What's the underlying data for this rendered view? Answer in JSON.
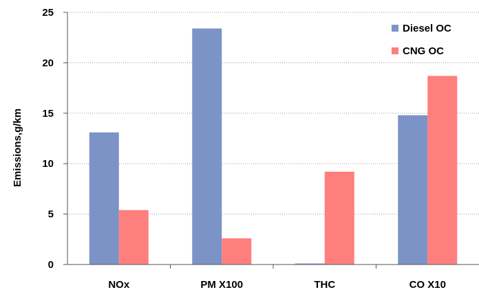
{
  "chart_data": {
    "type": "bar",
    "categories": [
      "NOx",
      "PM X100",
      "THC",
      "CO X10"
    ],
    "series": [
      {
        "name": "Diesel OC",
        "color": "#7b93c6",
        "values": [
          13.1,
          23.4,
          0.1,
          14.8
        ]
      },
      {
        "name": "CNG OC",
        "color": "#fe7f7e",
        "values": [
          5.4,
          2.6,
          9.2,
          18.7
        ]
      }
    ],
    "title": "",
    "xlabel": "",
    "ylabel": "Emissions,g/km",
    "ylim": [
      0,
      25
    ],
    "yticks": [
      0,
      5,
      10,
      15,
      20,
      25
    ],
    "grid": true,
    "legend_position": "top-right"
  }
}
